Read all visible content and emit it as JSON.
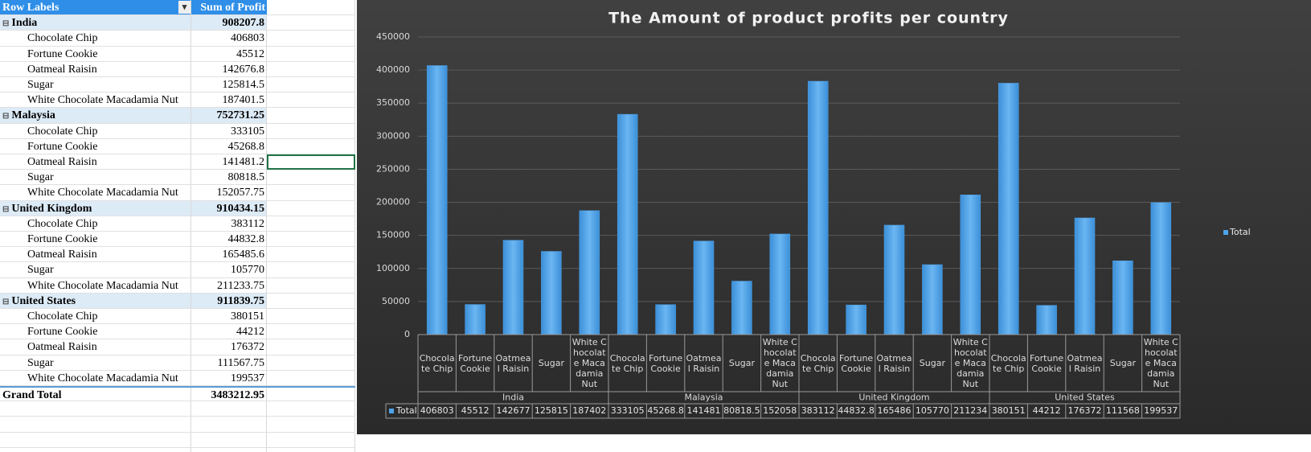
{
  "pivot": {
    "headers": [
      "Row Labels",
      "Sum of Profit"
    ],
    "groups": [
      {
        "label": "India",
        "total": 908207.8,
        "items": [
          [
            "Chocolate Chip",
            406803
          ],
          [
            "Fortune Cookie",
            45512
          ],
          [
            "Oatmeal Raisin",
            142676.8
          ],
          [
            "Sugar",
            125814.5
          ],
          [
            "White Chocolate Macadamia Nut",
            187401.5
          ]
        ]
      },
      {
        "label": "Malaysia",
        "total": 752731.25,
        "items": [
          [
            "Chocolate Chip",
            333105
          ],
          [
            "Fortune Cookie",
            45268.8
          ],
          [
            "Oatmeal Raisin",
            141481.2
          ],
          [
            "Sugar",
            80818.5
          ],
          [
            "White Chocolate Macadamia Nut",
            152057.75
          ]
        ]
      },
      {
        "label": "United Kingdom",
        "total": 910434.15,
        "items": [
          [
            "Chocolate Chip",
            383112
          ],
          [
            "Fortune Cookie",
            44832.8
          ],
          [
            "Oatmeal Raisin",
            165485.6
          ],
          [
            "Sugar",
            105770
          ],
          [
            "White Chocolate Macadamia Nut",
            211233.75
          ]
        ]
      },
      {
        "label": "United States",
        "total": 911839.75,
        "items": [
          [
            "Chocolate Chip",
            380151
          ],
          [
            "Fortune Cookie",
            44212
          ],
          [
            "Oatmeal Raisin",
            176372
          ],
          [
            "Sugar",
            111567.75
          ],
          [
            "White Chocolate Macadamia Nut",
            199537
          ]
        ]
      }
    ],
    "grand_total": {
      "label": "Grand Total",
      "value": 3483212.95
    }
  },
  "chart_data": {
    "type": "bar",
    "title": "The Amount of product profits per country",
    "groups": [
      "India",
      "Malaysia",
      "United Kingdom",
      "United States"
    ],
    "categories": [
      "Chocolate Chip",
      "Fortune Cookie",
      "Oatmeal Raisin",
      "Sugar",
      "White Chocolate Macadamia Nut",
      "Chocolate Chip",
      "Fortune Cookie",
      "Oatmeal Raisin",
      "Sugar",
      "White Chocolate Macadamia Nut",
      "Chocolate Chip",
      "Fortune Cookie",
      "Oatmeal Raisin",
      "Sugar",
      "White Chocolate Macadamia Nut",
      "Chocolate Chip",
      "Fortune Cookie",
      "Oatmeal Raisin",
      "Sugar",
      "White Chocolate Macadamia Nut"
    ],
    "series": [
      {
        "name": "Total",
        "color": "#4da3ea",
        "values": [
          406803,
          45512,
          142676.8,
          125814.5,
          187401.5,
          333105,
          45268.8,
          141481.2,
          80818.5,
          152057.75,
          383112,
          44832.8,
          165485.6,
          105770,
          211233.75,
          380151,
          44212,
          176372,
          111567.75,
          199537
        ],
        "value_labels": [
          "406803",
          "45512",
          "142677",
          "125815",
          "187402",
          "333105",
          "45268.8",
          "141481",
          "80818.5",
          "152058",
          "383112",
          "44832.8",
          "165486",
          "105770",
          "211234",
          "380151",
          "44212",
          "176372",
          "111568",
          "199537"
        ]
      }
    ],
    "ylim": [
      0,
      450000
    ],
    "yticks": [
      0,
      50000,
      100000,
      150000,
      200000,
      250000,
      300000,
      350000,
      400000,
      450000
    ],
    "grid": true,
    "legend": "right"
  }
}
